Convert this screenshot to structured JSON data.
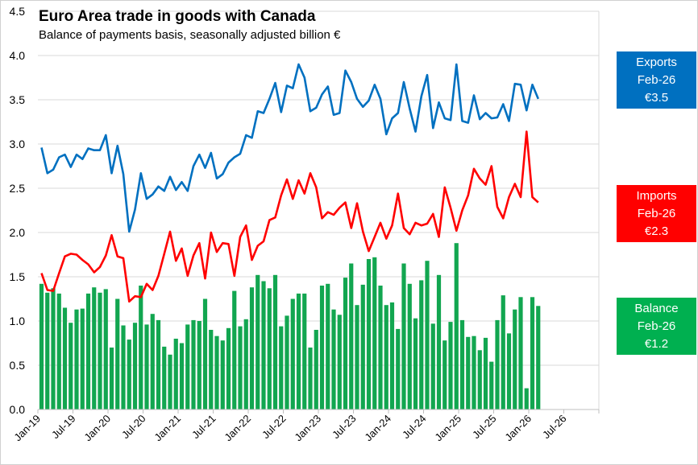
{
  "chart_data": {
    "type": "bar+line",
    "title": "Euro Area trade in goods with Canada",
    "subtitle": "Balance of payments basis, seasonally adjusted billion €",
    "xlabel": "",
    "ylabel": "",
    "ylim": [
      0,
      4.5
    ],
    "yticks": [
      "0.0",
      "0.5",
      "1.0",
      "1.5",
      "2.0",
      "2.5",
      "3.0",
      "3.5",
      "4.0",
      "4.5"
    ],
    "xtick_labels": [
      "Jan-19",
      "Jul-19",
      "Jan-20",
      "Jul-20",
      "Jan-21",
      "Jul-21",
      "Jan-22",
      "Jul-22",
      "Jan-23",
      "Jul-23",
      "Jan-24",
      "Jul-24",
      "Jan-25",
      "Jul-25",
      "Jan-26",
      "Jul-26"
    ],
    "x_start": "Jan-19",
    "x_end": "Feb-26",
    "grid": "horizontal",
    "series": [
      {
        "name": "Exports",
        "type": "line",
        "color": "#0070C0",
        "values": [
          2.96,
          2.67,
          2.71,
          2.85,
          2.88,
          2.74,
          2.88,
          2.83,
          2.95,
          2.93,
          2.93,
          3.1,
          2.67,
          2.98,
          2.66,
          2.01,
          2.26,
          2.67,
          2.38,
          2.43,
          2.52,
          2.47,
          2.63,
          2.48,
          2.57,
          2.47,
          2.75,
          2.88,
          2.73,
          2.9,
          2.61,
          2.66,
          2.79,
          2.85,
          2.89,
          3.1,
          3.07,
          3.37,
          3.35,
          3.51,
          3.69,
          3.36,
          3.66,
          3.63,
          3.9,
          3.75,
          3.37,
          3.41,
          3.56,
          3.65,
          3.33,
          3.35,
          3.83,
          3.7,
          3.51,
          3.42,
          3.49,
          3.67,
          3.51,
          3.11,
          3.29,
          3.35,
          3.7,
          3.4,
          3.14,
          3.54,
          3.78,
          3.18,
          3.47,
          3.29,
          3.27,
          3.9,
          3.26,
          3.24,
          3.55,
          3.28,
          3.35,
          3.29,
          3.3,
          3.45,
          3.26,
          3.68,
          3.67,
          3.38,
          3.67,
          3.51
        ]
      },
      {
        "name": "Imports",
        "type": "line",
        "color": "#FF0000",
        "values": [
          1.54,
          1.35,
          1.34,
          1.54,
          1.73,
          1.76,
          1.75,
          1.69,
          1.64,
          1.55,
          1.61,
          1.74,
          1.97,
          1.73,
          1.71,
          1.22,
          1.28,
          1.27,
          1.42,
          1.35,
          1.51,
          1.76,
          2.01,
          1.68,
          1.82,
          1.51,
          1.74,
          1.88,
          1.48,
          2.0,
          1.78,
          1.88,
          1.87,
          1.51,
          1.95,
          2.08,
          1.69,
          1.85,
          1.9,
          2.14,
          2.17,
          2.42,
          2.6,
          2.38,
          2.59,
          2.44,
          2.67,
          2.51,
          2.16,
          2.23,
          2.2,
          2.28,
          2.34,
          2.05,
          2.33,
          2.01,
          1.79,
          1.95,
          2.11,
          1.93,
          2.08,
          2.44,
          2.05,
          1.98,
          2.11,
          2.08,
          2.1,
          2.21,
          1.95,
          2.51,
          2.28,
          2.02,
          2.25,
          2.42,
          2.72,
          2.61,
          2.54,
          2.75,
          2.29,
          2.16,
          2.4,
          2.55,
          2.4,
          3.14,
          2.4,
          2.34
        ]
      },
      {
        "name": "Balance",
        "type": "bar",
        "color": "#12A650",
        "values": [
          1.42,
          1.32,
          1.37,
          1.31,
          1.15,
          0.98,
          1.13,
          1.14,
          1.31,
          1.38,
          1.32,
          1.36,
          0.7,
          1.25,
          0.95,
          0.79,
          0.98,
          1.4,
          0.96,
          1.08,
          1.01,
          0.71,
          0.62,
          0.8,
          0.75,
          0.96,
          1.01,
          1.0,
          1.25,
          0.9,
          0.83,
          0.78,
          0.92,
          1.34,
          0.94,
          1.02,
          1.38,
          1.52,
          1.45,
          1.37,
          1.52,
          0.94,
          1.06,
          1.25,
          1.31,
          1.31,
          0.7,
          0.9,
          1.4,
          1.42,
          1.13,
          1.07,
          1.49,
          1.65,
          1.18,
          1.41,
          1.7,
          1.72,
          1.4,
          1.18,
          1.21,
          0.91,
          1.65,
          1.42,
          1.03,
          1.46,
          1.68,
          0.97,
          1.52,
          0.78,
          0.99,
          1.88,
          1.01,
          0.82,
          0.83,
          0.67,
          0.81,
          0.54,
          1.01,
          1.29,
          0.86,
          1.13,
          1.27,
          0.24,
          1.27,
          1.17
        ]
      }
    ],
    "callouts": [
      {
        "name": "Exports",
        "period": "Feb-26",
        "value": "€3.5",
        "color": "#0070C0"
      },
      {
        "name": "Imports",
        "period": "Feb-26",
        "value": "€2.3",
        "color": "#FF0000"
      },
      {
        "name": "Balance",
        "period": "Feb-26",
        "value": "€1.2",
        "color": "#00B050"
      }
    ]
  }
}
